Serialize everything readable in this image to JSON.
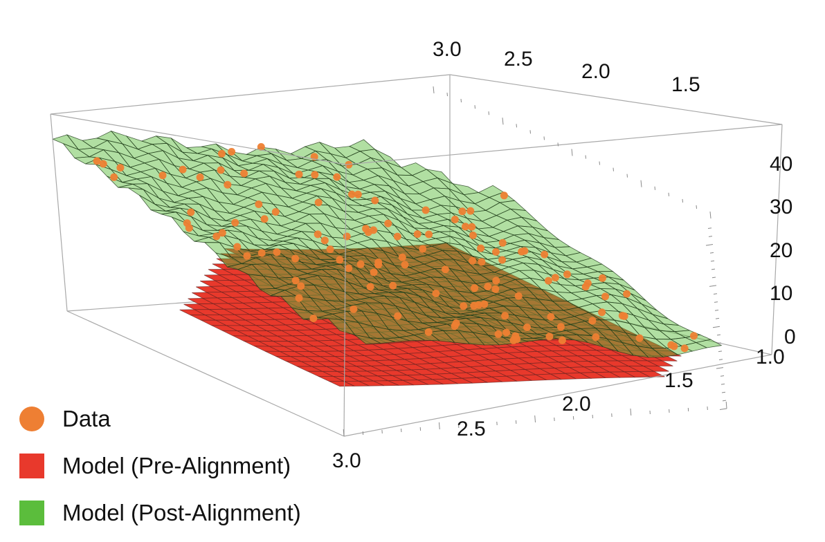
{
  "chart_data": {
    "type": "scatter",
    "subtype": "3d-surface-with-points",
    "x_axis": {
      "ticks": [
        "1.0",
        "1.5",
        "2.0",
        "2.5",
        "3.0"
      ],
      "range": [
        1.0,
        3.0
      ]
    },
    "y_axis": {
      "ticks": [
        "1.5",
        "2.0",
        "2.5",
        "3.0"
      ],
      "range": [
        1.0,
        3.0
      ]
    },
    "z_axis": {
      "ticks": [
        "0",
        "10",
        "20",
        "30",
        "40"
      ],
      "range": [
        0,
        48
      ]
    },
    "legend": {
      "placement": "bottom-left"
    },
    "series": [
      {
        "name": "Data",
        "kind": "points",
        "color": "#ee7f33"
      },
      {
        "name": "Model (Pre-Alignment)",
        "kind": "surface",
        "color": "#e8392c"
      },
      {
        "name": "Model (Post-Alignment)",
        "kind": "surface",
        "color": "#5bbd3c"
      }
    ]
  }
}
